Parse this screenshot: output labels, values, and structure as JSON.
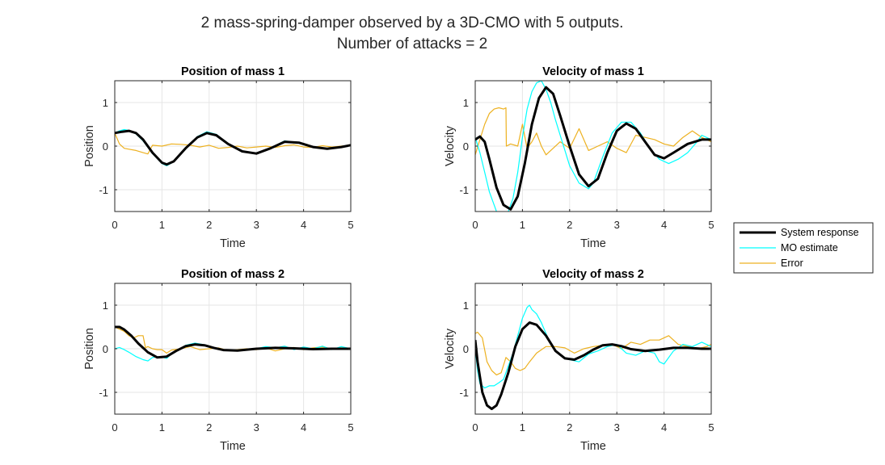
{
  "figure": {
    "title_line1": "2 mass-spring-damper observed by a 3D-CMO with 5 outputs.",
    "title_line2": "Number of attacks = 2"
  },
  "legend": {
    "entries": [
      "System response",
      "MO estimate",
      "Error"
    ],
    "colors": [
      "#000000",
      "#00FFFF",
      "#EDB120"
    ]
  },
  "chart_data": [
    {
      "type": "line",
      "title": "Position of mass 1",
      "xlabel": "Time",
      "ylabel": "Position",
      "xlim": [
        0,
        5
      ],
      "ylim": [
        -1.5,
        1.5
      ],
      "xticks": [
        0,
        1,
        2,
        3,
        4,
        5
      ],
      "yticks": [
        -1,
        0,
        1
      ],
      "grid": true,
      "series": [
        {
          "name": "System response",
          "x": [
            0,
            0.15,
            0.3,
            0.45,
            0.6,
            0.8,
            1.0,
            1.1,
            1.25,
            1.5,
            1.75,
            1.95,
            2.15,
            2.4,
            2.7,
            3.0,
            3.3,
            3.6,
            3.9,
            4.2,
            4.5,
            4.8,
            5.0
          ],
          "y": [
            0.3,
            0.33,
            0.35,
            0.3,
            0.15,
            -0.15,
            -0.38,
            -0.42,
            -0.35,
            -0.05,
            0.2,
            0.3,
            0.25,
            0.05,
            -0.12,
            -0.17,
            -0.05,
            0.1,
            0.08,
            -0.02,
            -0.06,
            -0.02,
            0.02
          ]
        },
        {
          "name": "MO estimate",
          "x": [
            0,
            0.1,
            0.2,
            0.3,
            0.45,
            0.6,
            0.8,
            1.0,
            1.1,
            1.25,
            1.5,
            1.75,
            1.95,
            2.15,
            2.4,
            2.7,
            3.0,
            3.3,
            3.6,
            3.9,
            4.2,
            4.5,
            4.8,
            5.0
          ],
          "y": [
            0.3,
            0.35,
            0.38,
            0.36,
            0.28,
            0.12,
            -0.17,
            -0.4,
            -0.45,
            -0.36,
            -0.07,
            0.22,
            0.33,
            0.27,
            0.06,
            -0.11,
            -0.18,
            -0.04,
            0.12,
            0.07,
            -0.03,
            -0.07,
            -0.02,
            0.03
          ]
        },
        {
          "name": "Error",
          "x": [
            0,
            0.1,
            0.2,
            0.3,
            0.45,
            0.6,
            0.7,
            0.8,
            1.0,
            1.2,
            1.4,
            1.6,
            1.8,
            2.0,
            2.2,
            2.4,
            2.6,
            2.8,
            3.0,
            3.2,
            3.4,
            3.6,
            3.8,
            4.0,
            4.2,
            4.4,
            4.6,
            4.8,
            5.0
          ],
          "y": [
            0.3,
            0.05,
            -0.05,
            -0.07,
            -0.1,
            -0.15,
            -0.18,
            0.02,
            0.0,
            0.05,
            0.04,
            0.02,
            -0.02,
            0.02,
            -0.05,
            -0.03,
            0.0,
            -0.04,
            -0.02,
            0.0,
            -0.03,
            0.01,
            0.03,
            -0.02,
            -0.03,
            0.01,
            -0.02,
            0.0,
            0.02
          ]
        }
      ]
    },
    {
      "type": "line",
      "title": "Velocity of mass 1",
      "xlabel": "Time",
      "ylabel": "Velocity",
      "xlim": [
        0,
        5
      ],
      "ylim": [
        -1.5,
        1.5
      ],
      "xticks": [
        0,
        1,
        2,
        3,
        4,
        5
      ],
      "yticks": [
        -1,
        0,
        1
      ],
      "grid": true,
      "series": [
        {
          "name": "System response",
          "x": [
            0,
            0.1,
            0.2,
            0.3,
            0.45,
            0.6,
            0.75,
            0.9,
            1.05,
            1.2,
            1.35,
            1.5,
            1.65,
            1.8,
            2.0,
            2.2,
            2.4,
            2.6,
            2.8,
            3.0,
            3.2,
            3.4,
            3.6,
            3.8,
            4.0,
            4.2,
            4.5,
            4.8,
            5.0
          ],
          "y": [
            0.15,
            0.22,
            0.1,
            -0.3,
            -0.95,
            -1.35,
            -1.45,
            -1.15,
            -0.4,
            0.5,
            1.1,
            1.35,
            1.2,
            0.7,
            0.0,
            -0.65,
            -0.92,
            -0.75,
            -0.15,
            0.35,
            0.52,
            0.4,
            0.1,
            -0.2,
            -0.28,
            -0.15,
            0.05,
            0.15,
            0.15
          ]
        },
        {
          "name": "MO estimate",
          "x": [
            0,
            0.1,
            0.2,
            0.3,
            0.4,
            0.45
          ],
          "y": [
            0.2,
            -0.15,
            -0.6,
            -1.05,
            -1.35,
            -1.5
          ]
        },
        {
          "name": "MO estimate",
          "x": [
            0.7,
            0.8,
            0.9,
            1.0,
            1.1,
            1.2,
            1.3,
            1.4,
            1.5,
            1.6,
            1.7,
            1.8,
            1.9,
            2.0,
            2.2,
            2.4,
            2.5,
            2.7,
            2.9,
            3.1,
            3.3,
            3.5,
            3.7,
            3.9,
            4.1,
            4.3,
            4.5,
            4.7,
            4.8,
            5.0
          ],
          "y": [
            -1.5,
            -1.2,
            -0.6,
            0.2,
            0.85,
            1.25,
            1.45,
            1.5,
            1.3,
            1.0,
            0.6,
            0.25,
            -0.1,
            -0.45,
            -0.85,
            -0.98,
            -0.85,
            -0.25,
            0.3,
            0.55,
            0.55,
            0.3,
            -0.05,
            -0.3,
            -0.4,
            -0.3,
            -0.15,
            0.1,
            0.25,
            0.15
          ]
        },
        {
          "name": "Error",
          "x": [
            0,
            0.1,
            0.2,
            0.3,
            0.4,
            0.5,
            0.6,
            0.65,
            0.66,
            0.75,
            0.9,
            1.0,
            1.1,
            1.2,
            1.3,
            1.4,
            1.5,
            1.6,
            1.8,
            2.0,
            2.2,
            2.4,
            2.6,
            2.8,
            3.0,
            3.2,
            3.4,
            3.6,
            3.8,
            4.0,
            4.2,
            4.4,
            4.6,
            4.8,
            5.0
          ],
          "y": [
            -0.2,
            0.15,
            0.5,
            0.75,
            0.85,
            0.88,
            0.85,
            0.88,
            0.0,
            0.05,
            0.0,
            0.5,
            -0.05,
            0.1,
            0.3,
            0.0,
            -0.2,
            -0.1,
            0.1,
            -0.05,
            0.4,
            -0.1,
            0.0,
            0.1,
            -0.05,
            -0.15,
            0.25,
            0.2,
            0.15,
            0.05,
            0.0,
            0.2,
            0.35,
            0.2,
            0.1
          ]
        }
      ]
    },
    {
      "type": "line",
      "title": "Position of mass 2",
      "xlabel": "Time",
      "ylabel": "Position",
      "xlim": [
        0,
        5
      ],
      "ylim": [
        -1.5,
        1.5
      ],
      "xticks": [
        0,
        1,
        2,
        3,
        4,
        5
      ],
      "yticks": [
        -1,
        0,
        1
      ],
      "grid": true,
      "series": [
        {
          "name": "System response",
          "x": [
            0,
            0.1,
            0.2,
            0.35,
            0.5,
            0.7,
            0.9,
            1.1,
            1.3,
            1.5,
            1.7,
            1.9,
            2.1,
            2.3,
            2.6,
            3.0,
            3.4,
            3.8,
            4.2,
            4.6,
            5.0
          ],
          "y": [
            0.5,
            0.5,
            0.44,
            0.3,
            0.12,
            -0.08,
            -0.2,
            -0.18,
            -0.05,
            0.06,
            0.1,
            0.08,
            0.02,
            -0.03,
            -0.04,
            0.0,
            0.02,
            0.01,
            -0.01,
            0.0,
            0.0
          ]
        },
        {
          "name": "MO estimate",
          "x": [
            0,
            0.1,
            0.2,
            0.3,
            0.45,
            0.6,
            0.7,
            0.8,
            0.95,
            1.1,
            1.2,
            1.35,
            1.5,
            1.7,
            1.9,
            2.1,
            2.3,
            2.6,
            3.0,
            3.2,
            3.4,
            3.6,
            3.8,
            4.0,
            4.2,
            4.4,
            4.6,
            4.8,
            5.0
          ],
          "y": [
            0.0,
            0.03,
            -0.02,
            -0.08,
            -0.18,
            -0.25,
            -0.28,
            -0.2,
            -0.18,
            -0.22,
            -0.12,
            -0.02,
            0.08,
            0.13,
            0.09,
            0.03,
            -0.03,
            -0.05,
            0.0,
            0.05,
            0.02,
            0.06,
            -0.02,
            0.04,
            0.0,
            0.06,
            -0.02,
            0.05,
            0.0
          ]
        },
        {
          "name": "Error",
          "x": [
            0,
            0.1,
            0.2,
            0.3,
            0.4,
            0.5,
            0.6,
            0.65,
            0.7,
            0.8,
            0.9,
            1.0,
            1.1,
            1.2,
            1.4,
            1.6,
            1.8,
            2.0,
            2.2,
            2.4,
            2.6,
            2.8,
            3.0,
            3.2,
            3.4,
            3.6,
            3.8,
            4.0,
            4.2,
            4.4,
            4.6,
            4.8,
            5.0
          ],
          "y": [
            0.5,
            0.45,
            0.4,
            0.3,
            0.25,
            0.3,
            0.3,
            0.02,
            0.05,
            0.0,
            -0.02,
            -0.02,
            -0.1,
            -0.03,
            0.0,
            0.05,
            -0.02,
            0.0,
            0.02,
            -0.04,
            -0.02,
            0.0,
            -0.02,
            0.02,
            -0.05,
            0.0,
            0.03,
            -0.02,
            0.02,
            0.04,
            0.0,
            0.02,
            0.0
          ]
        }
      ]
    },
    {
      "type": "line",
      "title": "Velocity of mass 2",
      "xlabel": "Time",
      "ylabel": "Velocity",
      "xlim": [
        0,
        5
      ],
      "ylim": [
        -1.5,
        1.5
      ],
      "xticks": [
        0,
        1,
        2,
        3,
        4,
        5
      ],
      "yticks": [
        -1,
        0,
        1
      ],
      "grid": true,
      "series": [
        {
          "name": "System response",
          "x": [
            0,
            0.05,
            0.15,
            0.25,
            0.35,
            0.45,
            0.55,
            0.7,
            0.85,
            1.0,
            1.15,
            1.3,
            1.5,
            1.7,
            1.9,
            2.1,
            2.3,
            2.5,
            2.7,
            2.9,
            3.1,
            3.3,
            3.6,
            3.9,
            4.2,
            4.5,
            4.8,
            5.0
          ],
          "y": [
            0.2,
            -0.3,
            -1.0,
            -1.3,
            -1.38,
            -1.3,
            -1.05,
            -0.55,
            0.05,
            0.45,
            0.6,
            0.55,
            0.3,
            -0.05,
            -0.22,
            -0.25,
            -0.15,
            -0.02,
            0.08,
            0.1,
            0.06,
            -0.01,
            -0.05,
            -0.02,
            0.02,
            0.02,
            0.0,
            0.0
          ]
        },
        {
          "name": "MO estimate",
          "x": [
            0,
            0.05,
            0.1,
            0.2,
            0.3,
            0.4,
            0.5,
            0.6,
            0.7,
            0.8,
            0.9,
            1.0,
            1.1,
            1.15,
            1.2,
            1.3,
            1.4,
            1.5,
            1.6,
            1.8,
            2.0,
            2.2,
            2.4,
            2.6,
            2.8,
            3.0,
            3.2,
            3.4,
            3.6,
            3.8,
            3.9,
            4.0,
            4.2,
            4.4,
            4.6,
            4.8,
            5.0
          ],
          "y": [
            0.0,
            -0.5,
            -0.8,
            -0.9,
            -0.85,
            -0.85,
            -0.78,
            -0.7,
            -0.4,
            -0.1,
            0.3,
            0.7,
            0.95,
            1.0,
            0.9,
            0.8,
            0.6,
            0.35,
            0.1,
            -0.15,
            -0.25,
            -0.3,
            -0.12,
            -0.05,
            0.05,
            0.1,
            -0.1,
            -0.15,
            -0.05,
            -0.1,
            -0.3,
            -0.35,
            -0.05,
            0.1,
            0.05,
            0.15,
            0.05
          ]
        },
        {
          "name": "Error",
          "x": [
            0,
            0.05,
            0.15,
            0.25,
            0.35,
            0.45,
            0.55,
            0.65,
            0.75,
            0.85,
            0.95,
            1.05,
            1.15,
            1.3,
            1.5,
            1.7,
            1.9,
            2.1,
            2.3,
            2.5,
            2.7,
            2.9,
            3.1,
            3.3,
            3.5,
            3.7,
            3.9,
            4.1,
            4.3,
            4.5,
            4.7,
            4.9,
            5.0
          ],
          "y": [
            0.35,
            0.38,
            0.25,
            -0.3,
            -0.5,
            -0.6,
            -0.55,
            -0.2,
            -0.3,
            -0.45,
            -0.5,
            -0.45,
            -0.3,
            -0.1,
            0.05,
            0.05,
            0.02,
            -0.1,
            0.0,
            0.05,
            0.08,
            0.1,
            0.0,
            0.15,
            0.1,
            0.2,
            0.2,
            0.3,
            0.1,
            0.05,
            0.0,
            0.05,
            0.1
          ]
        }
      ]
    }
  ]
}
